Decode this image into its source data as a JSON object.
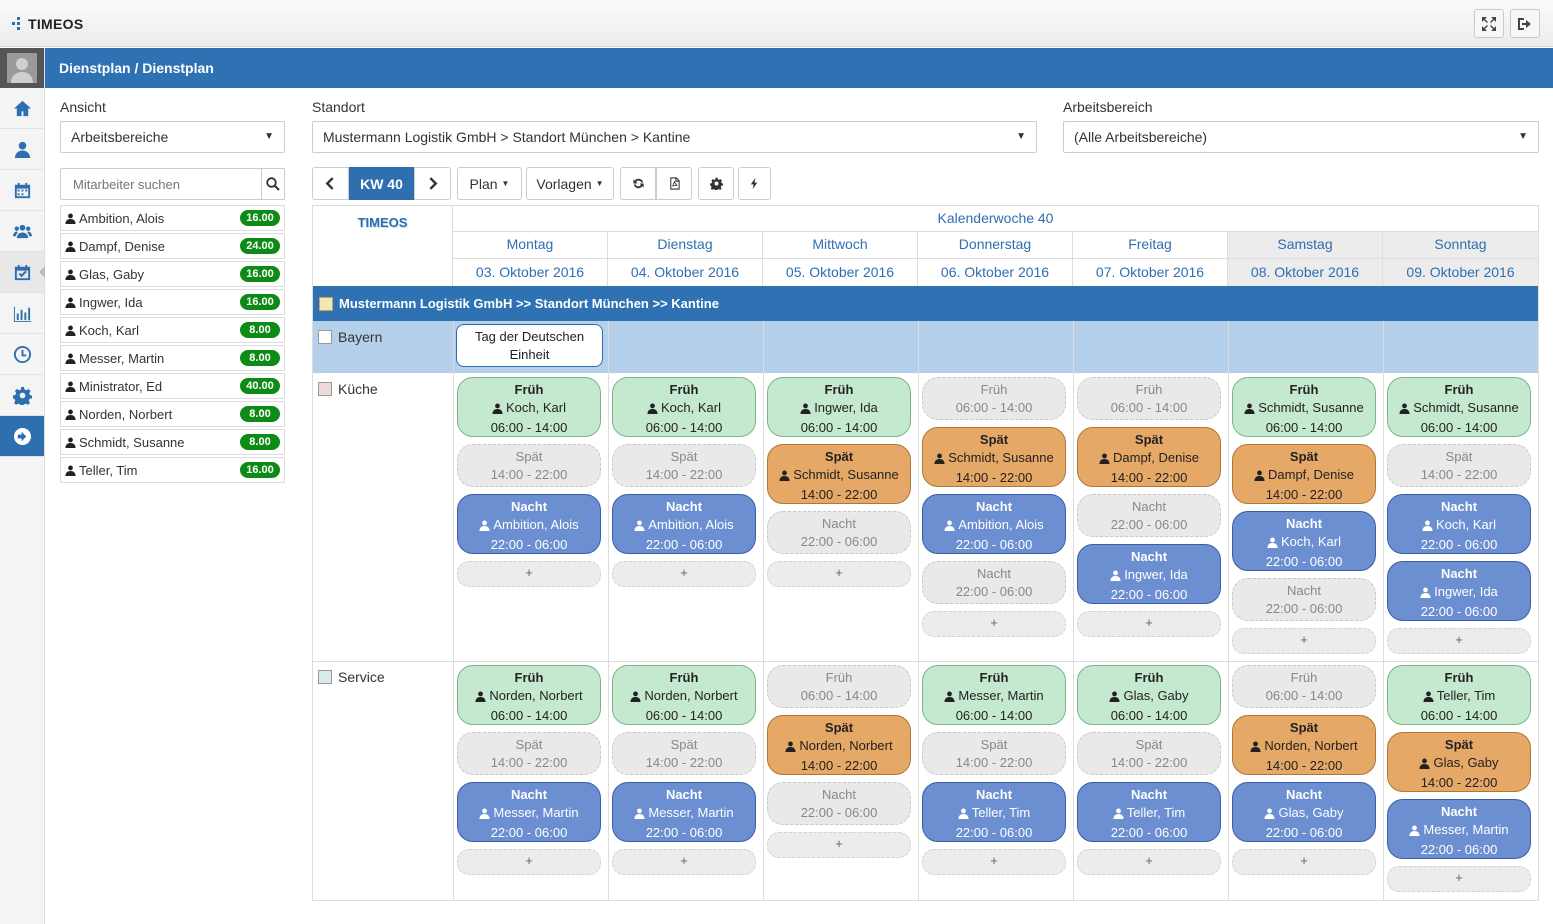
{
  "app": {
    "logo": "TIMEOS",
    "breadcrumb": "Dienstplan /  Dienstplan"
  },
  "filters": {
    "ansicht_label": "Ansicht",
    "ansicht_value": "Arbeitsbereiche",
    "standort_label": "Standort",
    "standort_value": "Mustermann Logistik GmbH > Standort München > Kantine",
    "arbeitsbereich_label": "Arbeitsbereich",
    "arbeitsbereich_value": "(Alle Arbeitsbereiche)"
  },
  "search": {
    "placeholder": "Mitarbeiter suchen"
  },
  "employees": [
    {
      "name": "Ambition, Alois",
      "hours": "16.00"
    },
    {
      "name": "Dampf, Denise",
      "hours": "24.00"
    },
    {
      "name": "Glas, Gaby",
      "hours": "16.00"
    },
    {
      "name": "Ingwer, Ida",
      "hours": "16.00"
    },
    {
      "name": "Koch, Karl",
      "hours": "8.00"
    },
    {
      "name": "Messer, Martin",
      "hours": "8.00"
    },
    {
      "name": "Ministrator, Ed",
      "hours": "40.00"
    },
    {
      "name": "Norden, Norbert",
      "hours": "8.00"
    },
    {
      "name": "Schmidt, Susanne",
      "hours": "8.00"
    },
    {
      "name": "Teller, Tim",
      "hours": "16.00"
    }
  ],
  "toolbar": {
    "week": "KW 40",
    "plan": "Plan",
    "vorlagen": "Vorlagen"
  },
  "calendar": {
    "brand": "TIMEOS",
    "week_title": "Kalenderwoche 40",
    "days": [
      {
        "name": "Montag",
        "date": "03. Oktober 2016"
      },
      {
        "name": "Dienstag",
        "date": "04. Oktober 2016"
      },
      {
        "name": "Mittwoch",
        "date": "05. Oktober 2016"
      },
      {
        "name": "Donnerstag",
        "date": "06. Oktober 2016"
      },
      {
        "name": "Freitag",
        "date": "07. Oktober 2016"
      },
      {
        "name": "Samstag",
        "date": "08. Oktober 2016"
      },
      {
        "name": "Sonntag",
        "date": "09. Oktober 2016"
      }
    ],
    "org": "Mustermann Logistik GmbH >> Standort München >> Kantine",
    "bayern_label": "Bayern",
    "holiday": "Tag der Deutschen Einheit",
    "areas": [
      {
        "name": "Küche",
        "color": "#f0d9d9",
        "days": [
          [
            {
              "t": "Früh",
              "p": "Koch, Karl",
              "h": "06:00 - 14:00"
            },
            {
              "t": "Spät",
              "h": "14:00 - 22:00"
            },
            {
              "t": "Nacht",
              "p": "Ambition, Alois",
              "h": "22:00 - 06:00"
            }
          ],
          [
            {
              "t": "Früh",
              "p": "Koch, Karl",
              "h": "06:00 - 14:00"
            },
            {
              "t": "Spät",
              "h": "14:00 - 22:00"
            },
            {
              "t": "Nacht",
              "p": "Ambition, Alois",
              "h": "22:00 - 06:00"
            }
          ],
          [
            {
              "t": "Früh",
              "p": "Ingwer, Ida",
              "h": "06:00 - 14:00"
            },
            {
              "t": "Spät",
              "p": "Schmidt, Susanne",
              "h": "14:00 - 22:00"
            },
            {
              "t": "Nacht",
              "h": "22:00 - 06:00"
            }
          ],
          [
            {
              "t": "Früh",
              "h": "06:00 - 14:00"
            },
            {
              "t": "Spät",
              "p": "Schmidt, Susanne",
              "h": "14:00 - 22:00"
            },
            {
              "t": "Nacht",
              "p": "Ambition, Alois",
              "h": "22:00 - 06:00"
            },
            {
              "t": "Nacht",
              "h": "22:00 - 06:00"
            }
          ],
          [
            {
              "t": "Früh",
              "h": "06:00 - 14:00"
            },
            {
              "t": "Spät",
              "p": "Dampf, Denise",
              "h": "14:00 - 22:00"
            },
            {
              "t": "Nacht",
              "h": "22:00 - 06:00"
            },
            {
              "t": "Nacht",
              "p": "Ingwer, Ida",
              "h": "22:00 - 06:00"
            }
          ],
          [
            {
              "t": "Früh",
              "p": "Schmidt, Susanne",
              "h": "06:00 - 14:00"
            },
            {
              "t": "Spät",
              "p": "Dampf, Denise",
              "h": "14:00 - 22:00"
            },
            {
              "t": "Nacht",
              "p": "Koch, Karl",
              "h": "22:00 - 06:00"
            },
            {
              "t": "Nacht",
              "h": "22:00 - 06:00"
            }
          ],
          [
            {
              "t": "Früh",
              "p": "Schmidt, Susanne",
              "h": "06:00 - 14:00"
            },
            {
              "t": "Spät",
              "h": "14:00 - 22:00"
            },
            {
              "t": "Nacht",
              "p": "Koch, Karl",
              "h": "22:00 - 06:00"
            },
            {
              "t": "Nacht",
              "p": "Ingwer, Ida",
              "h": "22:00 - 06:00"
            }
          ]
        ]
      },
      {
        "name": "Service",
        "color": "#d7ecec",
        "days": [
          [
            {
              "t": "Früh",
              "p": "Norden, Norbert",
              "h": "06:00 - 14:00"
            },
            {
              "t": "Spät",
              "h": "14:00 - 22:00"
            },
            {
              "t": "Nacht",
              "p": "Messer, Martin",
              "h": "22:00 - 06:00"
            }
          ],
          [
            {
              "t": "Früh",
              "p": "Norden, Norbert",
              "h": "06:00 - 14:00"
            },
            {
              "t": "Spät",
              "h": "14:00 - 22:00"
            },
            {
              "t": "Nacht",
              "p": "Messer, Martin",
              "h": "22:00 - 06:00"
            }
          ],
          [
            {
              "t": "Früh",
              "h": "06:00 - 14:00"
            },
            {
              "t": "Spät",
              "p": "Norden, Norbert",
              "h": "14:00 - 22:00"
            },
            {
              "t": "Nacht",
              "h": "22:00 - 06:00"
            }
          ],
          [
            {
              "t": "Früh",
              "p": "Messer, Martin",
              "h": "06:00 - 14:00"
            },
            {
              "t": "Spät",
              "h": "14:00 - 22:00"
            },
            {
              "t": "Nacht",
              "p": "Teller, Tim",
              "h": "22:00 - 06:00"
            }
          ],
          [
            {
              "t": "Früh",
              "p": "Glas, Gaby",
              "h": "06:00 - 14:00"
            },
            {
              "t": "Spät",
              "h": "14:00 - 22:00"
            },
            {
              "t": "Nacht",
              "p": "Teller, Tim",
              "h": "22:00 - 06:00"
            }
          ],
          [
            {
              "t": "Früh",
              "h": "06:00 - 14:00"
            },
            {
              "t": "Spät",
              "p": "Norden, Norbert",
              "h": "14:00 - 22:00"
            },
            {
              "t": "Nacht",
              "p": "Glas, Gaby",
              "h": "22:00 - 06:00"
            }
          ],
          [
            {
              "t": "Früh",
              "p": "Teller, Tim",
              "h": "06:00 - 14:00"
            },
            {
              "t": "Spät",
              "p": "Glas, Gaby",
              "h": "14:00 - 22:00"
            },
            {
              "t": "Nacht",
              "p": "Messer, Martin",
              "h": "22:00 - 06:00"
            }
          ]
        ]
      }
    ],
    "plus": "+"
  }
}
